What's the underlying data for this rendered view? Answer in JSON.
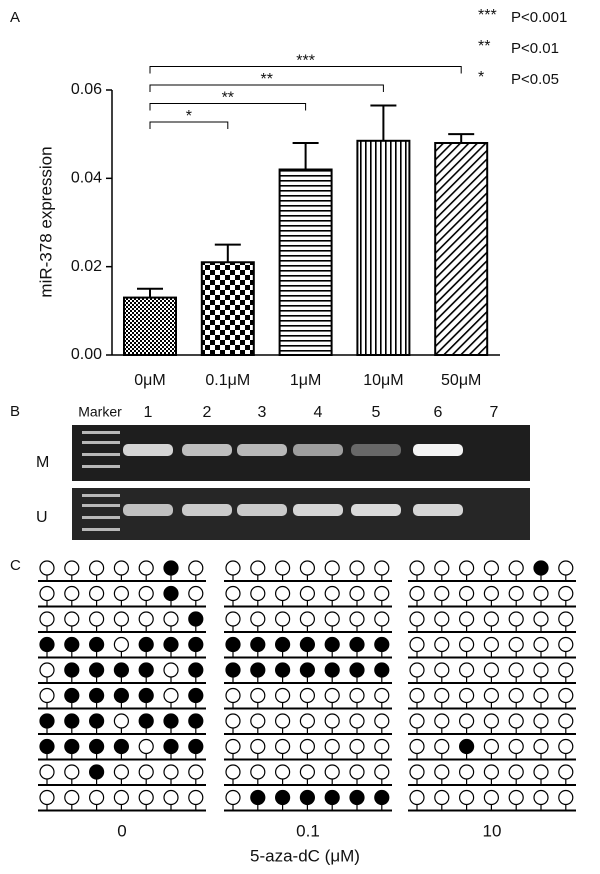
{
  "chart_data": {
    "type": "bar",
    "panel_label": "A",
    "y_label": "miR-378 expression",
    "categories": [
      "0μM",
      "0.1μM",
      "1μM",
      "10μM",
      "50μM"
    ],
    "values": [
      0.013,
      0.021,
      0.042,
      0.0485,
      0.048
    ],
    "errors": [
      0.002,
      0.004,
      0.006,
      0.008,
      0.002
    ],
    "color": "#000000",
    "ylim": [
      0,
      0.06
    ],
    "yticks": [
      {
        "value": 0,
        "label": "0.00"
      },
      {
        "value": 0.02,
        "label": "0.02"
      },
      {
        "value": 0.04,
        "label": "0.04"
      },
      {
        "value": 0.06,
        "label": "0.06"
      }
    ],
    "comparisons": [
      {
        "label": "*",
        "groups": [
          "0μM",
          "0.1μM"
        ]
      },
      {
        "label": "**",
        "groups": [
          "0μM",
          "1μM"
        ]
      },
      {
        "label": "**",
        "groups": [
          "0μM",
          "10μM"
        ]
      },
      {
        "label": "***",
        "groups": [
          "0μM",
          "50μM"
        ]
      }
    ],
    "significance_key": [
      {
        "stars": "***",
        "text": "P<0.001"
      },
      {
        "stars": "**",
        "text": "P<0.01"
      },
      {
        "stars": "*",
        "text": "P<0.05"
      }
    ]
  },
  "gel": {
    "panel_label": "B",
    "lanes": [
      "Marker",
      "1",
      "2",
      "3",
      "4",
      "5",
      "6",
      "7"
    ],
    "rows": [
      "M",
      "U"
    ]
  },
  "methylation": {
    "panel_label": "C",
    "x_label": "5-aza-dC (μM)",
    "groups": [
      {
        "label": "0",
        "rows": [
          [
            0,
            0,
            0,
            0,
            0,
            1,
            0
          ],
          [
            0,
            0,
            0,
            0,
            0,
            1,
            0
          ],
          [
            0,
            0,
            0,
            0,
            0,
            0,
            1
          ],
          [
            1,
            1,
            1,
            0,
            1,
            1,
            1
          ],
          [
            0,
            1,
            1,
            1,
            1,
            0,
            1
          ],
          [
            0,
            1,
            1,
            1,
            1,
            0,
            1
          ],
          [
            1,
            1,
            1,
            0,
            1,
            1,
            1
          ],
          [
            1,
            1,
            1,
            1,
            0,
            1,
            1
          ],
          [
            0,
            0,
            1,
            0,
            0,
            0,
            0
          ],
          [
            0,
            0,
            0,
            0,
            0,
            0,
            0
          ]
        ]
      },
      {
        "label": "0.1",
        "rows": [
          [
            0,
            0,
            0,
            0,
            0,
            0,
            0
          ],
          [
            0,
            0,
            0,
            0,
            0,
            0,
            0
          ],
          [
            0,
            0,
            0,
            0,
            0,
            0,
            0
          ],
          [
            1,
            1,
            1,
            1,
            1,
            1,
            1
          ],
          [
            1,
            1,
            1,
            1,
            1,
            1,
            1
          ],
          [
            0,
            0,
            0,
            0,
            0,
            0,
            0
          ],
          [
            0,
            0,
            0,
            0,
            0,
            0,
            0
          ],
          [
            0,
            0,
            0,
            0,
            0,
            0,
            0
          ],
          [
            0,
            0,
            0,
            0,
            0,
            0,
            0
          ],
          [
            0,
            1,
            1,
            1,
            1,
            1,
            1
          ]
        ]
      },
      {
        "label": "10",
        "rows": [
          [
            0,
            0,
            0,
            0,
            0,
            1,
            0
          ],
          [
            0,
            0,
            0,
            0,
            0,
            0,
            0
          ],
          [
            0,
            0,
            0,
            0,
            0,
            0,
            0
          ],
          [
            0,
            0,
            0,
            0,
            0,
            0,
            0
          ],
          [
            0,
            0,
            0,
            0,
            0,
            0,
            0
          ],
          [
            0,
            0,
            0,
            0,
            0,
            0,
            0
          ],
          [
            0,
            0,
            0,
            0,
            0,
            0,
            0
          ],
          [
            0,
            0,
            1,
            0,
            0,
            0,
            0
          ],
          [
            0,
            0,
            0,
            0,
            0,
            0,
            0
          ],
          [
            0,
            0,
            0,
            0,
            0,
            0,
            0
          ]
        ]
      }
    ]
  }
}
